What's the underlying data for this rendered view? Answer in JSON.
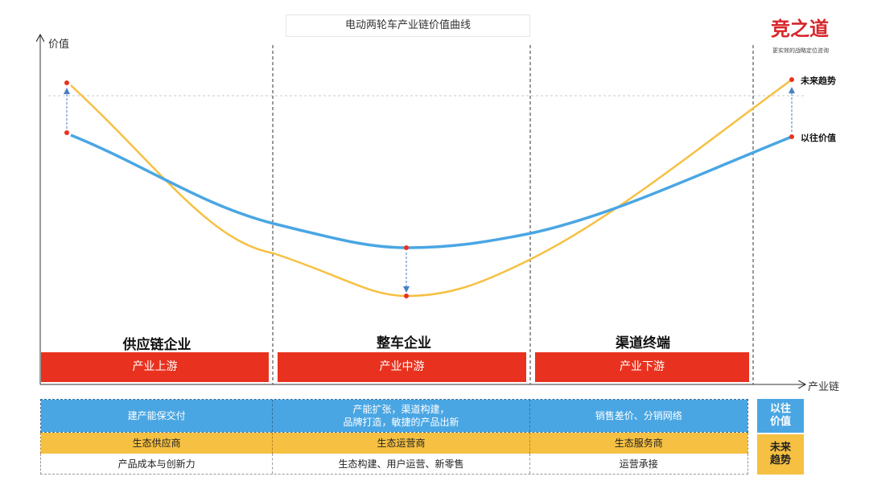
{
  "title": "电动两轮车产业链价值曲线",
  "logo": {
    "name": "竞之道",
    "slogan": "更实效的战略定位咨询"
  },
  "axes": {
    "y_label": "价值",
    "x_label": "产业链"
  },
  "legend": {
    "future": "未来趋势",
    "past": "以往价值"
  },
  "segments": [
    {
      "title": "供应链企业",
      "stage": "产业上游"
    },
    {
      "title": "整车企业",
      "stage": "产业中游"
    },
    {
      "title": "渠道终端",
      "stage": "产业下游"
    }
  ],
  "table": {
    "rows": [
      {
        "style": "blue",
        "cells": [
          "建产能保交付",
          "产能扩张，渠道构建，\n品牌打造，敏捷的产品出新",
          "销售差价、分销网络"
        ]
      },
      {
        "style": "yellow",
        "cells": [
          "生态供应商",
          "生态运营商",
          "生态服务商"
        ]
      },
      {
        "style": "white",
        "cells": [
          "产品成本与创新力",
          "生态构建、用户运营、新零售",
          "运营承接"
        ]
      }
    ],
    "tags": {
      "past": "以往\n价值",
      "future": "未来\n趋势"
    }
  },
  "colors": {
    "past_curve": "#4aa6e3",
    "future_curve": "#f6c042",
    "point": "#e8321f",
    "arrow": "#4a7fc4",
    "stage_bar": "#e8321f",
    "tag_blue": "#4aa6e3",
    "tag_yellow": "#f6c042",
    "logo": "#d7262b"
  }
}
